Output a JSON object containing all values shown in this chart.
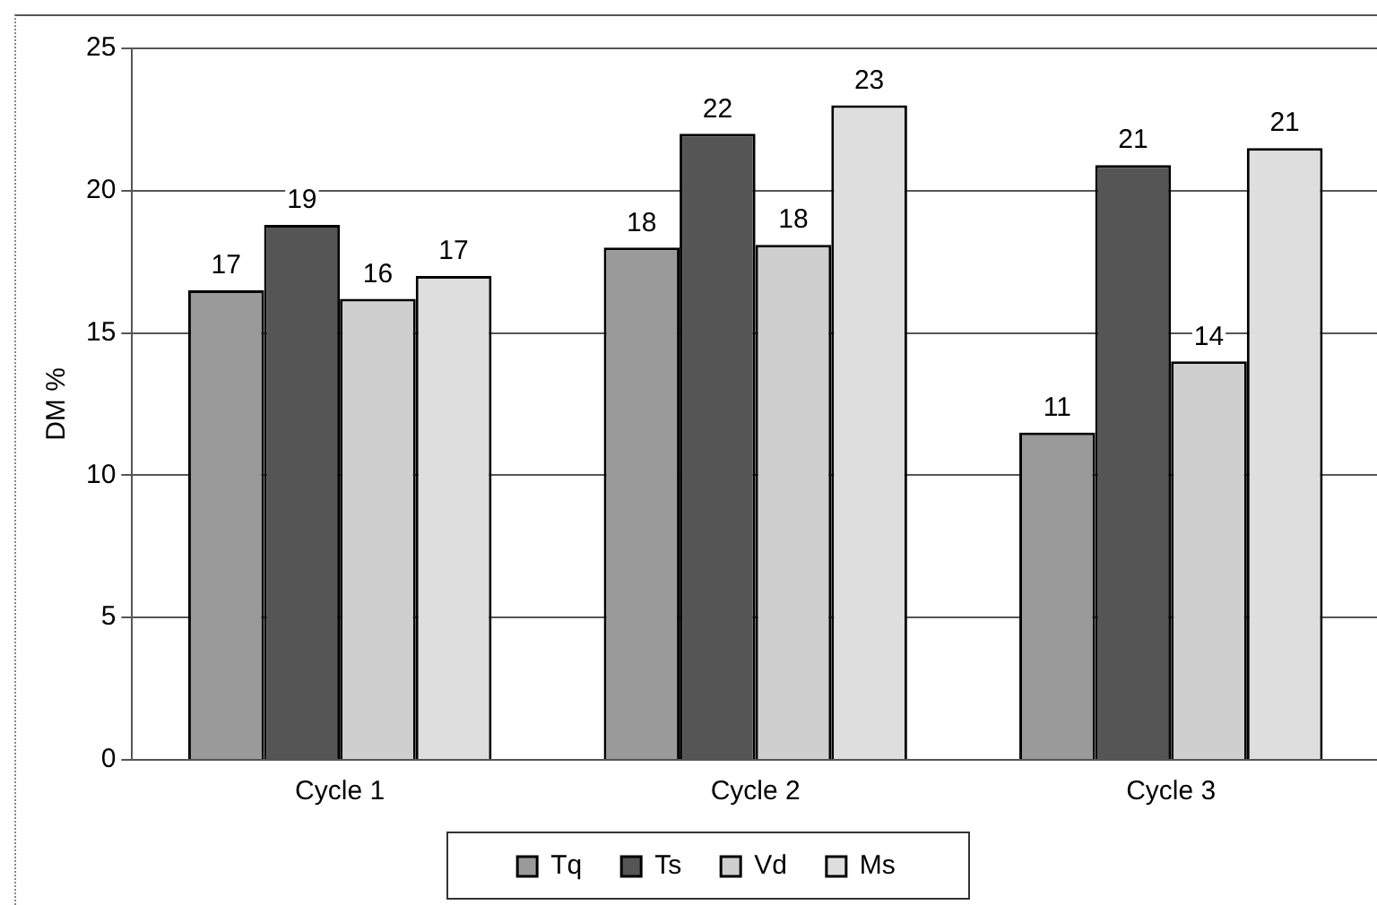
{
  "chart_data": {
    "type": "bar",
    "ylabel": "DM %",
    "categories": [
      "Cycle 1",
      "Cycle 2",
      "Cycle 3"
    ],
    "series": [
      {
        "name": "Tq",
        "color": "#9a9a9a",
        "values": [
          16.5,
          18.0,
          11.5
        ],
        "value_labels": [
          "17",
          "18",
          "11"
        ]
      },
      {
        "name": "Ts",
        "color": "#555555",
        "values": [
          18.8,
          22.0,
          20.9
        ],
        "value_labels": [
          "19",
          "22",
          "21"
        ]
      },
      {
        "name": "Vd",
        "color": "#cfcfcf",
        "values": [
          16.2,
          18.1,
          14.0
        ],
        "value_labels": [
          "16",
          "18",
          "14"
        ]
      },
      {
        "name": "Ms",
        "color": "#dedede",
        "values": [
          17.0,
          23.0,
          21.5
        ],
        "value_labels": [
          "17",
          "23",
          "21"
        ]
      }
    ],
    "ylim": [
      0,
      25
    ],
    "yticks": [
      0,
      5,
      10,
      15,
      20,
      25
    ],
    "grid": "y",
    "legend": "bottom"
  }
}
